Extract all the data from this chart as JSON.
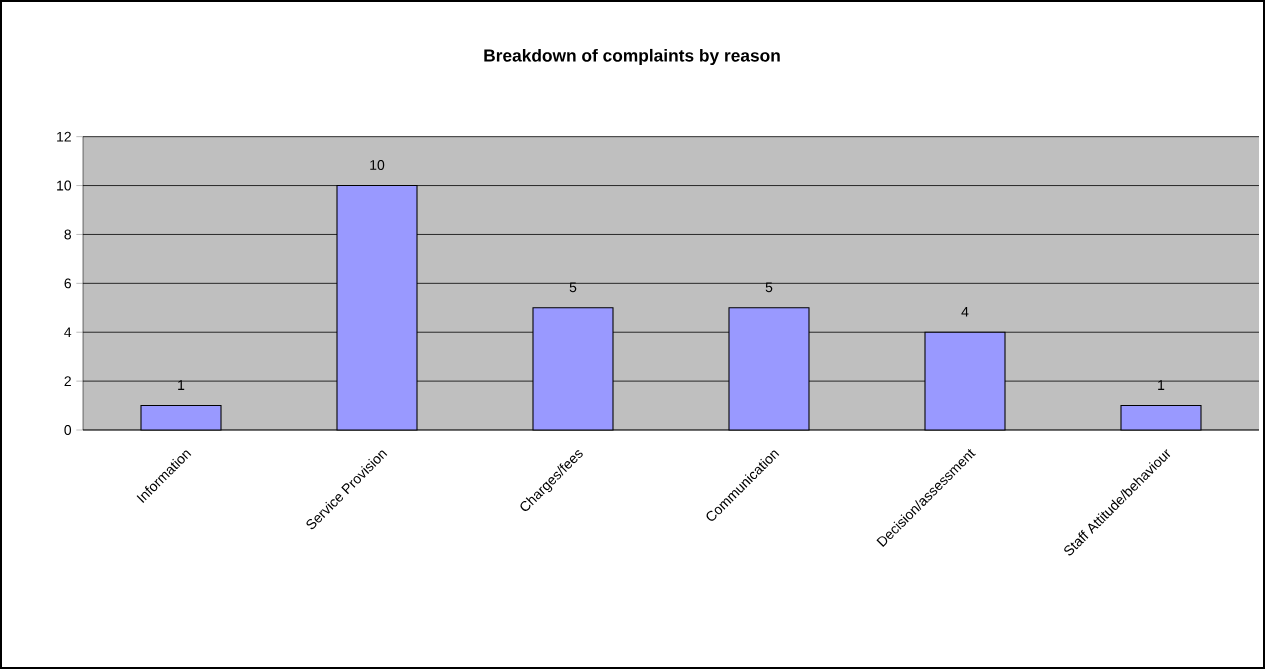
{
  "chart_data": {
    "type": "bar",
    "title": "Breakdown of complaints by reason",
    "categories": [
      "Information",
      "Service Provision",
      "Charges/fees",
      "Communication",
      "Decision/assessment",
      "Staff Attitude/behaviour"
    ],
    "values": [
      1,
      10,
      5,
      5,
      4,
      1
    ],
    "color": "#9999ff",
    "ylim": [
      0,
      12
    ],
    "yticks": [
      0,
      2,
      4,
      6,
      8,
      10,
      12
    ],
    "grid": "y",
    "data_labels": true
  }
}
